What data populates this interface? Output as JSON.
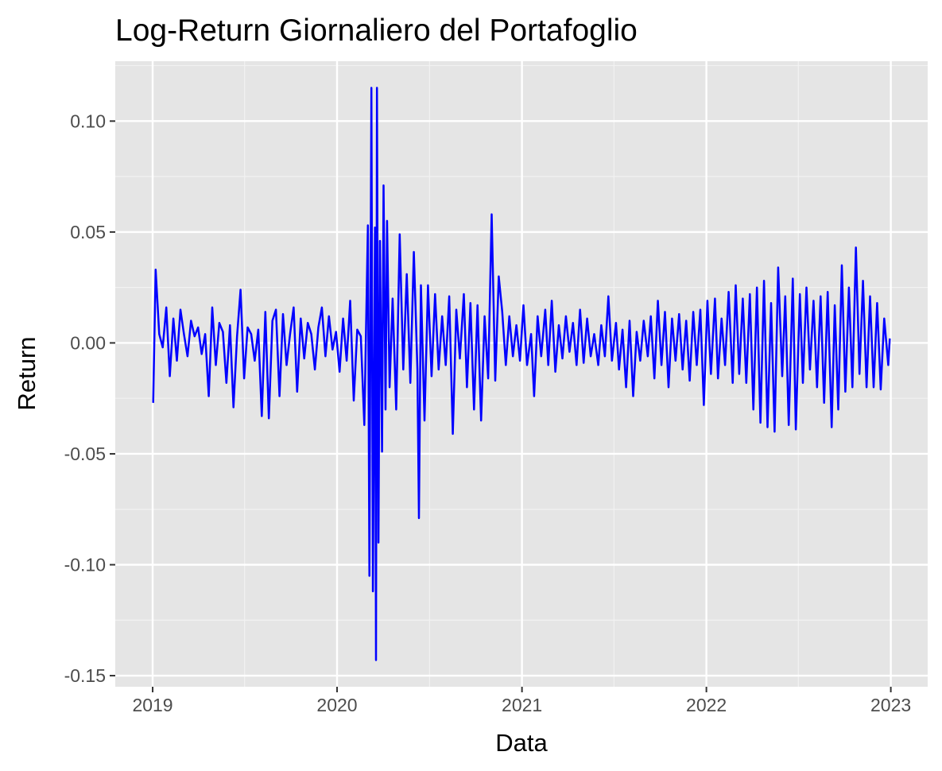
{
  "chart_data": {
    "type": "line",
    "title": "Log-Return Giornaliero del Portafoglio",
    "xlabel": "Data",
    "ylabel": "Return",
    "xlim": [
      "2018-10-19",
      "2023-03-15"
    ],
    "ylim": [
      -0.155,
      0.127
    ],
    "x_ticks": [
      "2019",
      "2020",
      "2021",
      "2022",
      "2023"
    ],
    "y_ticks": [
      "0.10",
      "0.05",
      "0.00",
      "-0.05",
      "-0.10",
      "-0.15"
    ],
    "grid": true,
    "legend": "none",
    "colors": {
      "line": "#0000ff",
      "panel": "#e5e5e5",
      "grid_major": "#ffffff",
      "grid_minor": "#f2f2f2",
      "tick_label": "#4d4d4d"
    },
    "series": [
      {
        "x": [
          "2019-01-02",
          "2019-01-07",
          "2019-01-14",
          "2019-01-21",
          "2019-01-28",
          "2019-02-04",
          "2019-02-11",
          "2019-02-18",
          "2019-02-25",
          "2019-03-04",
          "2019-03-11",
          "2019-03-18",
          "2019-03-25",
          "2019-04-01",
          "2019-04-08",
          "2019-04-15",
          "2019-04-22",
          "2019-04-29",
          "2019-05-06",
          "2019-05-13",
          "2019-05-20",
          "2019-05-27",
          "2019-06-03",
          "2019-06-10",
          "2019-06-17",
          "2019-06-24",
          "2019-07-01",
          "2019-07-08",
          "2019-07-15",
          "2019-07-22",
          "2019-07-29",
          "2019-08-05",
          "2019-08-12",
          "2019-08-19",
          "2019-08-26",
          "2019-09-02",
          "2019-09-09",
          "2019-09-16",
          "2019-09-23",
          "2019-09-30",
          "2019-10-07",
          "2019-10-14",
          "2019-10-21",
          "2019-10-28",
          "2019-11-04",
          "2019-11-11",
          "2019-11-18",
          "2019-11-25",
          "2019-12-02",
          "2019-12-09",
          "2019-12-16",
          "2019-12-23",
          "2019-12-30",
          "2020-01-06",
          "2020-01-13",
          "2020-01-20",
          "2020-01-27",
          "2020-02-03",
          "2020-02-10",
          "2020-02-17",
          "2020-02-24",
          "2020-03-02",
          "2020-03-05",
          "2020-03-09",
          "2020-03-12",
          "2020-03-16",
          "2020-03-18",
          "2020-03-20",
          "2020-03-23",
          "2020-03-26",
          "2020-03-30",
          "2020-04-02",
          "2020-04-06",
          "2020-04-09",
          "2020-04-14",
          "2020-04-20",
          "2020-04-27",
          "2020-05-04",
          "2020-05-11",
          "2020-05-18",
          "2020-05-25",
          "2020-06-01",
          "2020-06-08",
          "2020-06-11",
          "2020-06-15",
          "2020-06-22",
          "2020-06-29",
          "2020-07-06",
          "2020-07-13",
          "2020-07-20",
          "2020-07-27",
          "2020-08-03",
          "2020-08-10",
          "2020-08-17",
          "2020-08-24",
          "2020-08-31",
          "2020-09-08",
          "2020-09-14",
          "2020-09-21",
          "2020-09-28",
          "2020-10-05",
          "2020-10-12",
          "2020-10-19",
          "2020-10-26",
          "2020-11-02",
          "2020-11-09",
          "2020-11-16",
          "2020-11-23",
          "2020-11-30",
          "2020-12-07",
          "2020-12-14",
          "2020-12-21",
          "2020-12-28",
          "2021-01-04",
          "2021-01-11",
          "2021-01-19",
          "2021-01-25",
          "2021-02-01",
          "2021-02-08",
          "2021-02-16",
          "2021-02-22",
          "2021-03-01",
          "2021-03-08",
          "2021-03-15",
          "2021-03-22",
          "2021-03-29",
          "2021-04-05",
          "2021-04-12",
          "2021-04-19",
          "2021-04-26",
          "2021-05-03",
          "2021-05-10",
          "2021-05-17",
          "2021-05-24",
          "2021-06-01",
          "2021-06-07",
          "2021-06-14",
          "2021-06-21",
          "2021-06-28",
          "2021-07-06",
          "2021-07-12",
          "2021-07-19",
          "2021-07-26",
          "2021-08-02",
          "2021-08-09",
          "2021-08-16",
          "2021-08-23",
          "2021-08-30",
          "2021-09-07",
          "2021-09-13",
          "2021-09-20",
          "2021-09-27",
          "2021-10-04",
          "2021-10-11",
          "2021-10-18",
          "2021-10-25",
          "2021-11-01",
          "2021-11-08",
          "2021-11-15",
          "2021-11-22",
          "2021-11-29",
          "2021-12-06",
          "2021-12-13",
          "2021-12-20",
          "2021-12-27",
          "2022-01-03",
          "2022-01-10",
          "2022-01-18",
          "2022-01-24",
          "2022-01-31",
          "2022-02-07",
          "2022-02-14",
          "2022-02-22",
          "2022-02-28",
          "2022-03-07",
          "2022-03-14",
          "2022-03-21",
          "2022-03-28",
          "2022-04-04",
          "2022-04-11",
          "2022-04-18",
          "2022-04-25",
          "2022-05-02",
          "2022-05-09",
          "2022-05-16",
          "2022-05-23",
          "2022-05-31",
          "2022-06-06",
          "2022-06-13",
          "2022-06-21",
          "2022-06-27",
          "2022-07-05",
          "2022-07-11",
          "2022-07-18",
          "2022-07-25",
          "2022-08-01",
          "2022-08-08",
          "2022-08-15",
          "2022-08-22",
          "2022-08-29",
          "2022-09-06",
          "2022-09-12",
          "2022-09-19",
          "2022-09-26",
          "2022-10-03",
          "2022-10-10",
          "2022-10-17",
          "2022-10-24",
          "2022-10-31",
          "2022-11-07",
          "2022-11-14",
          "2022-11-21",
          "2022-11-28",
          "2022-12-05",
          "2022-12-12",
          "2022-12-19",
          "2022-12-27",
          "2022-12-30"
        ],
        "y": [
          -0.027,
          0.033,
          0.004,
          -0.002,
          0.016,
          -0.015,
          0.011,
          -0.008,
          0.015,
          0.004,
          -0.006,
          0.01,
          0.003,
          0.007,
          -0.005,
          0.004,
          -0.024,
          0.016,
          -0.01,
          0.009,
          0.005,
          -0.018,
          0.008,
          -0.029,
          0.003,
          0.024,
          -0.016,
          0.007,
          0.004,
          -0.008,
          0.006,
          -0.033,
          0.014,
          -0.034,
          0.01,
          0.015,
          -0.024,
          0.013,
          -0.01,
          0.004,
          0.016,
          -0.022,
          0.011,
          -0.007,
          0.009,
          0.004,
          -0.012,
          0.007,
          0.016,
          -0.006,
          0.012,
          -0.003,
          0.005,
          -0.013,
          0.011,
          -0.008,
          0.019,
          -0.026,
          0.006,
          0.003,
          -0.037,
          0.053,
          -0.105,
          0.115,
          -0.112,
          0.052,
          -0.143,
          0.115,
          -0.09,
          0.046,
          -0.049,
          0.071,
          -0.03,
          0.055,
          -0.02,
          0.02,
          -0.03,
          0.049,
          -0.012,
          0.031,
          -0.018,
          0.041,
          -0.012,
          -0.079,
          0.026,
          -0.035,
          0.026,
          -0.015,
          0.022,
          -0.012,
          0.012,
          -0.01,
          0.021,
          -0.041,
          0.015,
          -0.007,
          0.022,
          -0.02,
          0.018,
          -0.03,
          0.017,
          -0.035,
          0.012,
          -0.016,
          0.058,
          -0.017,
          0.03,
          0.014,
          -0.01,
          0.012,
          -0.006,
          0.008,
          -0.008,
          0.017,
          -0.01,
          0.004,
          -0.024,
          0.012,
          -0.006,
          0.015,
          -0.01,
          0.019,
          -0.013,
          0.008,
          -0.007,
          0.012,
          -0.004,
          0.009,
          -0.01,
          0.015,
          -0.009,
          0.011,
          -0.006,
          0.004,
          -0.01,
          0.008,
          -0.006,
          0.021,
          -0.008,
          0.009,
          -0.012,
          0.006,
          -0.02,
          0.01,
          -0.024,
          0.005,
          -0.008,
          0.01,
          -0.006,
          0.012,
          -0.016,
          0.019,
          -0.01,
          0.014,
          -0.02,
          0.011,
          -0.008,
          0.013,
          -0.012,
          0.01,
          -0.017,
          0.014,
          -0.01,
          0.015,
          -0.028,
          0.019,
          -0.014,
          0.02,
          -0.016,
          0.011,
          -0.01,
          0.023,
          -0.018,
          0.026,
          -0.014,
          0.02,
          -0.018,
          0.022,
          -0.03,
          0.025,
          -0.036,
          0.028,
          -0.038,
          0.018,
          -0.04,
          0.034,
          -0.015,
          0.021,
          -0.037,
          0.029,
          -0.039,
          0.022,
          -0.018,
          0.025,
          -0.012,
          0.019,
          -0.02,
          0.021,
          -0.027,
          0.023,
          -0.038,
          0.017,
          -0.03,
          0.035,
          -0.022,
          0.025,
          -0.02,
          0.043,
          -0.014,
          0.028,
          -0.02,
          0.021,
          -0.02,
          0.018,
          -0.021,
          0.011,
          -0.01,
          0.002
        ]
      }
    ]
  }
}
